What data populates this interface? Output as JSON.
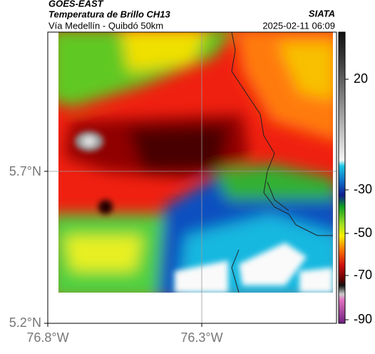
{
  "header": {
    "title": "GOES-EAST",
    "subtitle": "Temperatura de Brillo CH13",
    "source": "SIATA",
    "region": "Vía Medellín - Quibdó 50km",
    "timestamp": "2025-02-11 06:09"
  },
  "axes": {
    "y_ticks": [
      "5.7°N",
      "5.2°N"
    ],
    "x_ticks": [
      "76.8°W",
      "76.3°W"
    ]
  },
  "colorbar": {
    "ticks": [
      "20",
      "-30",
      "-50",
      "-70",
      "-90"
    ]
  }
}
